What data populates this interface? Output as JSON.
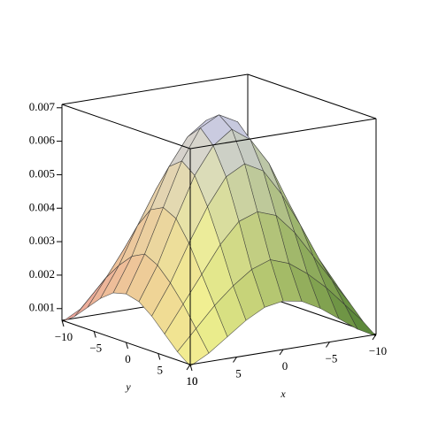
{
  "chart_data": {
    "type": "surface",
    "xlabel": "x",
    "ylabel": "y",
    "x": [
      -10,
      -8,
      -6,
      -4,
      -2,
      0,
      2,
      4,
      6,
      8,
      10
    ],
    "y": [
      -10,
      -8,
      -6,
      -4,
      -2,
      0,
      2,
      4,
      6,
      8,
      10
    ],
    "z": [
      [
        0.0006,
        0.0009,
        0.0013,
        0.0017,
        0.002,
        0.0021,
        0.002,
        0.0017,
        0.0013,
        0.0009,
        0.0006
      ],
      [
        0.0009,
        0.0015,
        0.0021,
        0.0026,
        0.003,
        0.0032,
        0.003,
        0.0026,
        0.0021,
        0.0015,
        0.0009
      ],
      [
        0.0013,
        0.0021,
        0.0029,
        0.0037,
        0.0043,
        0.0045,
        0.0043,
        0.0037,
        0.0029,
        0.0021,
        0.0013
      ],
      [
        0.0017,
        0.0026,
        0.0037,
        0.0047,
        0.0055,
        0.0058,
        0.0055,
        0.0047,
        0.0037,
        0.0026,
        0.0017
      ],
      [
        0.002,
        0.003,
        0.0043,
        0.0055,
        0.0063,
        0.0067,
        0.0063,
        0.0055,
        0.0043,
        0.003,
        0.002
      ],
      [
        0.0021,
        0.0032,
        0.0045,
        0.0058,
        0.0067,
        0.007,
        0.0067,
        0.0058,
        0.0045,
        0.0032,
        0.0021
      ],
      [
        0.002,
        0.003,
        0.0043,
        0.0055,
        0.0063,
        0.0067,
        0.0063,
        0.0055,
        0.0043,
        0.003,
        0.002
      ],
      [
        0.0017,
        0.0026,
        0.0037,
        0.0047,
        0.0055,
        0.0058,
        0.0055,
        0.0047,
        0.0037,
        0.0026,
        0.0017
      ],
      [
        0.0013,
        0.0021,
        0.0029,
        0.0037,
        0.0043,
        0.0045,
        0.0043,
        0.0037,
        0.0029,
        0.0021,
        0.0013
      ],
      [
        0.0009,
        0.0015,
        0.0021,
        0.0026,
        0.003,
        0.0032,
        0.003,
        0.0026,
        0.0021,
        0.0015,
        0.0009
      ],
      [
        0.0006,
        0.0009,
        0.0013,
        0.0017,
        0.002,
        0.0021,
        0.002,
        0.0017,
        0.0013,
        0.0009,
        0.0006
      ]
    ],
    "xlim": [
      -10,
      10
    ],
    "ylim": [
      -10,
      10
    ],
    "zlim": [
      0.00065,
      0.0071
    ],
    "xticks": [
      {
        "value": -10,
        "label": "−10"
      },
      {
        "value": -5,
        "label": "−5"
      },
      0,
      5,
      10
    ],
    "yticks": [
      {
        "value": -10,
        "label": "−10"
      },
      {
        "value": -5,
        "label": "−5"
      },
      0,
      5,
      10
    ],
    "zticks": [
      0.001,
      0.002,
      0.003,
      0.004,
      0.005,
      0.006,
      0.007
    ],
    "colormap": [
      "#ec9c9c",
      "#f2f290",
      "#4e7e32"
    ],
    "peak_color": "#c4c4f4"
  }
}
